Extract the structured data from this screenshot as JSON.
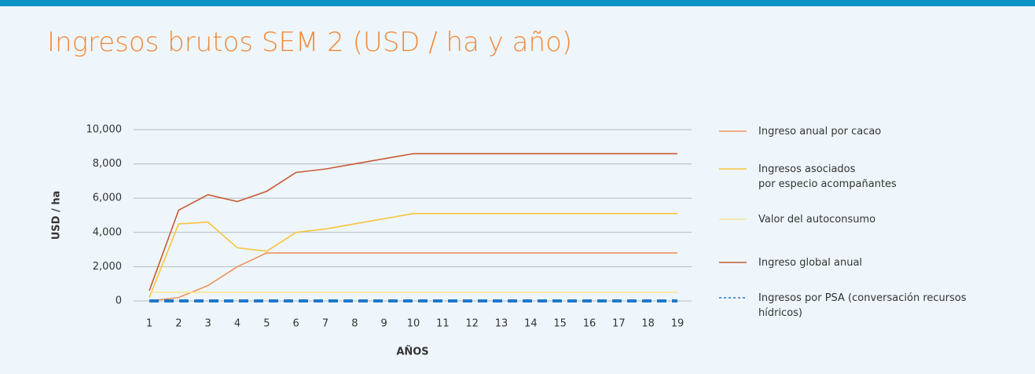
{
  "chart_data": {
    "type": "line",
    "title": "Ingresos brutos SEM 2 (USD / ha y año)",
    "x_label": "AÑOS",
    "y_label": "USD / ha",
    "categories": [
      "1",
      "2",
      "3",
      "4",
      "5",
      "6",
      "7",
      "8",
      "9",
      "10",
      "11",
      "12",
      "13",
      "14",
      "15",
      "16",
      "17",
      "18",
      "19"
    ],
    "series": [
      {
        "name": "Ingreso anual por cacao",
        "color": "#f0915a",
        "values": [
          0,
          200,
          900,
          2000,
          2800,
          2800,
          2800,
          2800,
          2800,
          2800,
          2800,
          2800,
          2800,
          2800,
          2800,
          2800,
          2800,
          2800,
          2800
        ]
      },
      {
        "name": "Ingresos asociados\npor especio acompañantes",
        "color": "#f7c43a",
        "values": [
          200,
          4500,
          4600,
          3100,
          2900,
          4000,
          4200,
          4500,
          4800,
          5100,
          5100,
          5100,
          5100,
          5100,
          5100,
          5100,
          5100,
          5100,
          5100
        ]
      },
      {
        "name": "Valor del autoconsumo",
        "color": "#fbe394",
        "values": [
          500,
          500,
          500,
          500,
          500,
          500,
          500,
          500,
          500,
          500,
          500,
          500,
          500,
          500,
          500,
          500,
          500,
          500,
          500
        ]
      },
      {
        "name": "Ingreso global anual",
        "color": "#c95a34",
        "values": [
          600,
          5300,
          6200,
          5800,
          6400,
          7500,
          7700,
          8000,
          8300,
          8600,
          8600,
          8600,
          8600,
          8600,
          8600,
          8600,
          8600,
          8600,
          8600
        ]
      },
      {
        "name": "Ingresos por PSA (conversación recursos\nhídricos)",
        "color": "#1f78c8",
        "dashed": true,
        "values": [
          0,
          0,
          0,
          0,
          0,
          0,
          0,
          0,
          0,
          0,
          0,
          0,
          0,
          0,
          0,
          0,
          0,
          0,
          0
        ]
      }
    ],
    "ylim": [
      0,
      10000
    ],
    "yticks": [
      0,
      {
        "value": 2000,
        "label": "2,000"
      },
      {
        "value": 4000,
        "label": "4,000"
      },
      {
        "value": 6000,
        "label": "6,000"
      },
      {
        "value": 8000,
        "label": "8,000"
      },
      {
        "value": 10000,
        "label": "10,000"
      }
    ],
    "grid": true,
    "legend": "right"
  }
}
